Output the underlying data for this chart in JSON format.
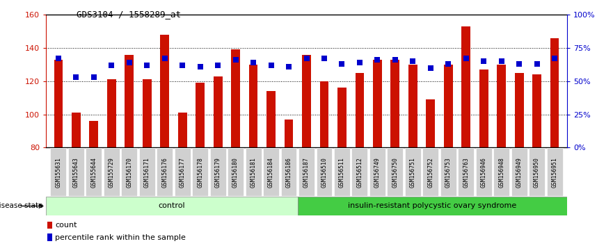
{
  "title": "GDS3104 / 1558289_at",
  "samples": [
    "GSM155631",
    "GSM155643",
    "GSM155644",
    "GSM155729",
    "GSM156170",
    "GSM156171",
    "GSM156176",
    "GSM156177",
    "GSM156178",
    "GSM156179",
    "GSM156180",
    "GSM156181",
    "GSM156184",
    "GSM156186",
    "GSM156187",
    "GSM156510",
    "GSM156511",
    "GSM156512",
    "GSM156749",
    "GSM156750",
    "GSM156751",
    "GSM156752",
    "GSM156753",
    "GSM156763",
    "GSM156946",
    "GSM156948",
    "GSM156949",
    "GSM156950",
    "GSM156951"
  ],
  "counts": [
    133,
    101,
    96,
    121,
    136,
    121,
    148,
    101,
    119,
    123,
    139,
    130,
    114,
    97,
    136,
    120,
    116,
    125,
    133,
    133,
    130,
    109,
    130,
    153,
    127,
    130,
    125,
    124,
    146
  ],
  "percentile_ranks": [
    67,
    53,
    53,
    62,
    64,
    62,
    67,
    62,
    61,
    62,
    66,
    64,
    62,
    61,
    67,
    67,
    63,
    64,
    66,
    66,
    65,
    60,
    63,
    67,
    65,
    65,
    63,
    63,
    67
  ],
  "control_count": 14,
  "disease_count": 15,
  "ylim_left": [
    80,
    160
  ],
  "ylim_right": [
    0,
    100
  ],
  "yticks_left": [
    80,
    100,
    120,
    140,
    160
  ],
  "yticks_right": [
    0,
    25,
    50,
    75,
    100
  ],
  "ytick_labels_right": [
    "0%",
    "25%",
    "50%",
    "75%",
    "100%"
  ],
  "bar_color": "#cc1100",
  "dot_color": "#0000cc",
  "control_bg": "#ccffcc",
  "disease_bg": "#44cc44",
  "gray_bg": "#d0d0d0",
  "bar_width": 0.5,
  "dot_size": 30,
  "left_axis_color": "#cc1100",
  "right_axis_color": "#0000cc",
  "control_label": "control",
  "disease_label": "insulin-resistant polycystic ovary syndrome",
  "disease_state_label": "disease state",
  "legend_count_label": "count",
  "legend_pct_label": "percentile rank within the sample",
  "grid_lines": [
    100,
    120,
    140
  ]
}
